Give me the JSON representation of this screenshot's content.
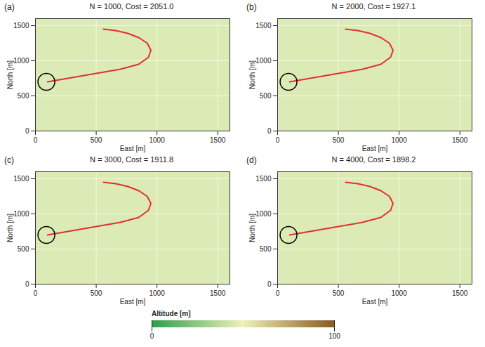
{
  "chart_data": [
    {
      "type": "line",
      "panel": "(a)",
      "title": "N = 1000, Cost = 2051.0",
      "x_label": "East [m]",
      "y_label": "North [m]",
      "xlim": [
        0,
        1600
      ],
      "ylim": [
        0,
        1600
      ],
      "xticks": [
        0,
        500,
        1000,
        1500
      ],
      "yticks": [
        0,
        500,
        1000,
        1500
      ],
      "x": [
        100,
        300,
        500,
        700,
        850,
        930,
        950,
        920,
        850,
        760,
        660,
        560
      ],
      "values": [
        700,
        760,
        820,
        880,
        950,
        1050,
        1150,
        1250,
        1330,
        1390,
        1430,
        1450
      ],
      "color": "#e03030",
      "start": {
        "x": 90,
        "y": 700,
        "marker": "circle",
        "color": "#000000"
      }
    },
    {
      "type": "line",
      "panel": "(b)",
      "title": "N = 2000, Cost = 1927.1",
      "x_label": "East [m]",
      "y_label": "North [m]",
      "xlim": [
        0,
        1600
      ],
      "ylim": [
        0,
        1600
      ],
      "xticks": [
        0,
        500,
        1000,
        1500
      ],
      "yticks": [
        0,
        500,
        1000,
        1500
      ],
      "x": [
        100,
        300,
        500,
        700,
        850,
        930,
        950,
        920,
        850,
        760,
        660,
        560
      ],
      "values": [
        700,
        760,
        820,
        880,
        950,
        1050,
        1150,
        1250,
        1330,
        1390,
        1430,
        1450
      ],
      "color": "#e03030",
      "start": {
        "x": 90,
        "y": 700,
        "marker": "circle",
        "color": "#000000"
      }
    },
    {
      "type": "line",
      "panel": "(c)",
      "title": "N = 3000, Cost = 1911.8",
      "x_label": "East [m]",
      "y_label": "North [m]",
      "xlim": [
        0,
        1600
      ],
      "ylim": [
        0,
        1600
      ],
      "xticks": [
        0,
        500,
        1000,
        1500
      ],
      "yticks": [
        0,
        500,
        1000,
        1500
      ],
      "x": [
        100,
        300,
        500,
        700,
        850,
        930,
        950,
        920,
        850,
        760,
        660,
        560
      ],
      "values": [
        700,
        760,
        820,
        880,
        950,
        1050,
        1150,
        1250,
        1330,
        1390,
        1430,
        1450
      ],
      "color": "#e03030",
      "start": {
        "x": 90,
        "y": 700,
        "marker": "circle",
        "color": "#000000"
      }
    },
    {
      "type": "line",
      "panel": "(d)",
      "title": "N = 4000, Cost = 1898.2",
      "x_label": "East [m]",
      "y_label": "North [m]",
      "xlim": [
        0,
        1600
      ],
      "ylim": [
        0,
        1600
      ],
      "xticks": [
        0,
        500,
        1000,
        1500
      ],
      "yticks": [
        0,
        500,
        1000,
        1500
      ],
      "x": [
        100,
        300,
        500,
        700,
        850,
        930,
        950,
        920,
        850,
        760,
        660,
        560
      ],
      "values": [
        700,
        760,
        820,
        880,
        950,
        1050,
        1150,
        1250,
        1330,
        1390,
        1430,
        1450
      ],
      "color": "#e03030",
      "start": {
        "x": 90,
        "y": 700,
        "marker": "circle",
        "color": "#000000"
      }
    }
  ],
  "colorbar": {
    "label": "Altitude [m]",
    "range": [
      0,
      100
    ],
    "ticks": [
      0,
      100
    ],
    "colors": [
      "#2e9e4e",
      "#eef2b8",
      "#8a5a20"
    ]
  }
}
